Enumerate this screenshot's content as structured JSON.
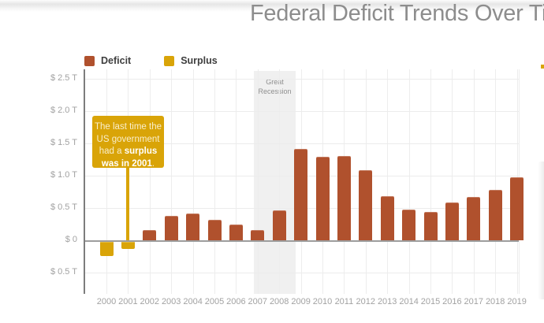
{
  "header": {
    "title": "Federal Deficit Trends Over Tim"
  },
  "colors": {
    "deficit": "#b0512d",
    "surplus": "#d9a408",
    "annotation_box": "#d9a408",
    "recession_band": "#f0f0f0",
    "zero_line": "#9d9d9d",
    "title_text": "#8d8d8d",
    "axis_label_text": "#a2a2a2"
  },
  "legend": {
    "items": [
      {
        "label": "Deficit",
        "color": "#b0512d"
      },
      {
        "label": "Surplus",
        "color": "#d9a408"
      }
    ]
  },
  "annotation": {
    "color": "#d9a408",
    "pointer_year": "2001",
    "lines": [
      [
        {
          "t": "The last time the",
          "b": false
        }
      ],
      [
        {
          "t": "US government",
          "b": false
        }
      ],
      [
        {
          "t": "had a ",
          "b": false
        },
        {
          "t": "surplus",
          "b": true
        }
      ],
      [
        {
          "t": "was in 2001",
          "b": true
        },
        {
          "t": ".",
          "b": false
        }
      ]
    ]
  },
  "chart_data": {
    "type": "bar",
    "title": "Federal Deficit Trends Over Tim",
    "unit": "trillions of US dollars",
    "value_sign_meaning": {
      "positive": "Deficit",
      "negative": "Surplus"
    },
    "categories": [
      "2000",
      "2001",
      "2002",
      "2003",
      "2004",
      "2005",
      "2006",
      "2007",
      "2008",
      "2009",
      "2010",
      "2011",
      "2012",
      "2013",
      "2014",
      "2015",
      "2016",
      "2017",
      "2018",
      "2019"
    ],
    "values": [
      -0.24,
      -0.13,
      0.16,
      0.38,
      0.41,
      0.32,
      0.25,
      0.16,
      0.46,
      1.41,
      1.29,
      1.3,
      1.09,
      0.68,
      0.48,
      0.44,
      0.59,
      0.67,
      0.78,
      0.98
    ],
    "ylim": [
      -0.5,
      2.5
    ],
    "yticks": [
      {
        "v": 2.5,
        "label": "$ 2.5 T"
      },
      {
        "v": 2.0,
        "label": "$ 2.0 T"
      },
      {
        "v": 1.5,
        "label": "$ 1.5 T"
      },
      {
        "v": 1.0,
        "label": "$ 1.0 T"
      },
      {
        "v": 0.5,
        "label": "$ 0.5 T"
      },
      {
        "v": 0,
        "label": "$ 0"
      },
      {
        "v": -0.5,
        "label": "$ 0.5 T"
      }
    ],
    "band": {
      "label_line1": "Great",
      "label_line2": "Recession",
      "from": "2007",
      "to": "2008"
    },
    "grid": true,
    "legend_position": "top-left"
  }
}
